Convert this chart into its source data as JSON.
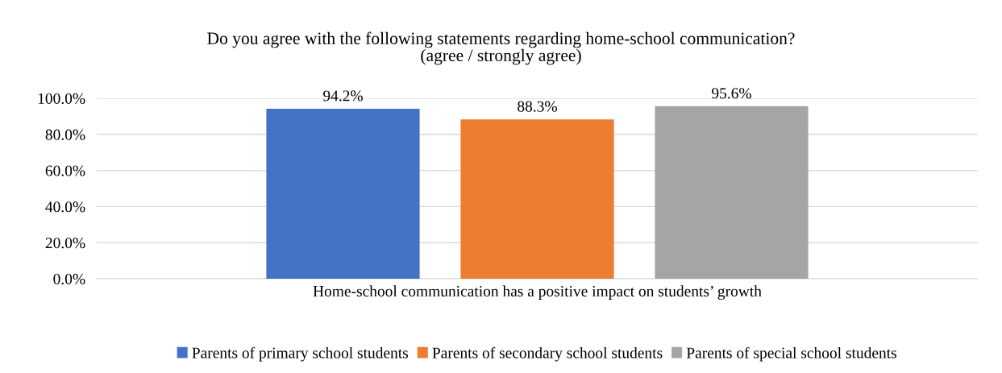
{
  "chart_data": {
    "type": "bar",
    "title": "Do you agree with the following statements regarding home-school communication?\n(agree / strongly agree)",
    "categories": [
      "Home-school communication has a positive impact on students’ growth"
    ],
    "series": [
      {
        "name": "Parents of primary school students",
        "color": "#4472c4",
        "values": [
          94.2
        ],
        "value_labels": [
          "94.2%"
        ]
      },
      {
        "name": "Parents of secondary school students",
        "color": "#ed7d31",
        "values": [
          88.3
        ],
        "value_labels": [
          "88.3%"
        ]
      },
      {
        "name": "Parents of special school students",
        "color": "#a5a5a5",
        "values": [
          95.6
        ],
        "value_labels": [
          "95.6%"
        ]
      }
    ],
    "ylim": [
      0,
      100
    ],
    "yticks": [
      {
        "value": 0,
        "label": "0.0%"
      },
      {
        "value": 20,
        "label": "20.0%"
      },
      {
        "value": 40,
        "label": "40.0%"
      },
      {
        "value": 60,
        "label": "60.0%"
      },
      {
        "value": 80,
        "label": "80.0%"
      },
      {
        "value": 100,
        "label": "100.0%"
      }
    ],
    "grid": "y",
    "legend": "bottom"
  }
}
